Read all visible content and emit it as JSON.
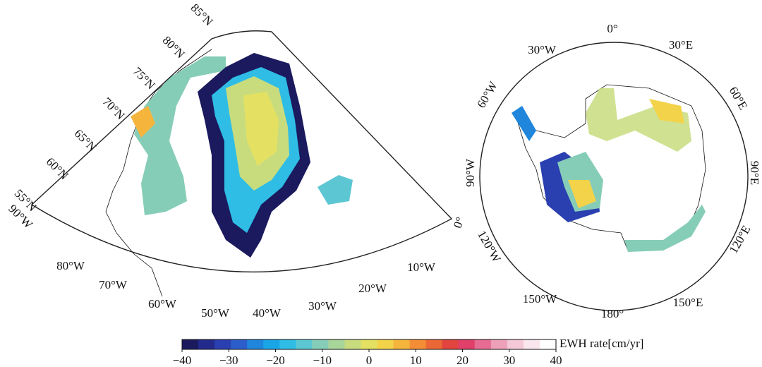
{
  "greenland_map": {
    "lat_labels": [
      "85°N",
      "80°N",
      "75°N",
      "70°N",
      "65°N",
      "60°N",
      "55°N"
    ],
    "lon_labels": [
      "90°W",
      "80°W",
      "70°W",
      "60°W",
      "50°W",
      "40°W",
      "30°W",
      "20°W",
      "10°W",
      "0°"
    ]
  },
  "antarctica_map": {
    "lon_labels": [
      "0°",
      "30°E",
      "60°E",
      "90°E",
      "120°E",
      "150°E",
      "180°",
      "150°W",
      "120°W",
      "90°W",
      "60°W",
      "30°W"
    ]
  },
  "colorbar": {
    "label": "EWH rate[cm/yr]",
    "lim": [
      -40,
      40
    ],
    "ticks": [
      {
        "value": -40,
        "label": "−40"
      },
      {
        "value": -30,
        "label": "−30"
      },
      {
        "value": -20,
        "label": "−20"
      },
      {
        "value": -10,
        "label": "−10"
      },
      0,
      10,
      20,
      30,
      40
    ],
    "colors": [
      "#1b1a5e",
      "#232a8c",
      "#2a3fb0",
      "#2b5ecb",
      "#1f86dc",
      "#1aa5e6",
      "#2fbde6",
      "#5cc7d2",
      "#86cdb8",
      "#a8d59a",
      "#c8dc7e",
      "#e4e062",
      "#f2d34a",
      "#f5b43c",
      "#f38e36",
      "#ec6736",
      "#e2443f",
      "#e0406a",
      "#e66c93",
      "#eea0b8",
      "#f4c8d6",
      "#fae6ee",
      "#ffffff"
    ]
  }
}
